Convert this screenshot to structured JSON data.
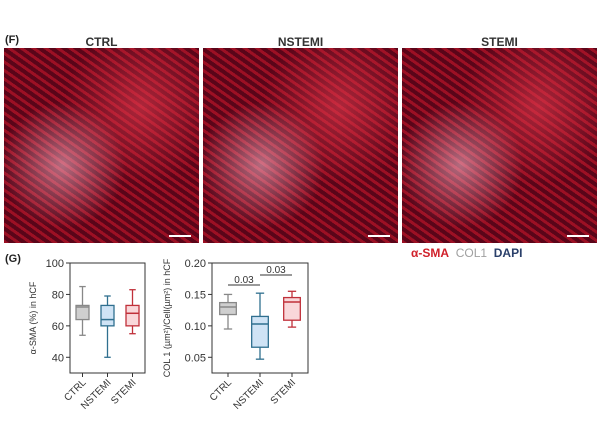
{
  "panel_f": {
    "label": "(F)",
    "images": [
      {
        "title": "CTRL"
      },
      {
        "title": "NSTEMI"
      },
      {
        "title": "STEMI"
      }
    ],
    "legend": [
      {
        "text": "α-SMA",
        "color": "#d0202a"
      },
      {
        "text": "COL1",
        "color": "#a0a0a0"
      },
      {
        "text": "DAPI",
        "color": "#2a3f6a"
      }
    ]
  },
  "panel_g": {
    "label": "(G)"
  },
  "chart_data": [
    {
      "type": "box",
      "ylabel": "α-SMA (%) in hCF",
      "ylim": [
        30,
        100
      ],
      "yticks": [
        40,
        60,
        80,
        100
      ],
      "categories": [
        "CTRL",
        "NSTEMI",
        "STEMI"
      ],
      "colors": [
        "#888888",
        "#2f6f8f",
        "#c0303a"
      ],
      "fills": [
        "#cfcfcf",
        "#cfe3f5",
        "#f9d7da"
      ],
      "series": [
        {
          "min": 54,
          "q1": 64,
          "median": 72,
          "q3": 73,
          "max": 85
        },
        {
          "min": 40,
          "q1": 60,
          "median": 64,
          "q3": 73,
          "max": 79
        },
        {
          "min": 55,
          "q1": 60,
          "median": 68,
          "q3": 73,
          "max": 83
        }
      ],
      "annotations": []
    },
    {
      "type": "box",
      "ylabel": "COL 1 (µm²)/Cell(µm²) in hCF",
      "ylim": [
        0.025,
        0.2
      ],
      "yticks": [
        0.05,
        0.1,
        0.15,
        0.2
      ],
      "categories": [
        "CTRL",
        "NSTEMI",
        "STEMI"
      ],
      "colors": [
        "#888888",
        "#2f6f8f",
        "#c0303a"
      ],
      "fills": [
        "#cfcfcf",
        "#cfe3f5",
        "#f9d7da"
      ],
      "series": [
        {
          "min": 0.095,
          "q1": 0.118,
          "median": 0.13,
          "q3": 0.137,
          "max": 0.15
        },
        {
          "min": 0.047,
          "q1": 0.066,
          "median": 0.103,
          "q3": 0.115,
          "max": 0.152
        },
        {
          "min": 0.098,
          "q1": 0.109,
          "median": 0.138,
          "q3": 0.145,
          "max": 0.155
        }
      ],
      "annotations": [
        {
          "text": "0.03",
          "from": "CTRL",
          "to": "NSTEMI"
        },
        {
          "text": "0.03",
          "from": "NSTEMI",
          "to": "STEMI"
        }
      ]
    }
  ]
}
